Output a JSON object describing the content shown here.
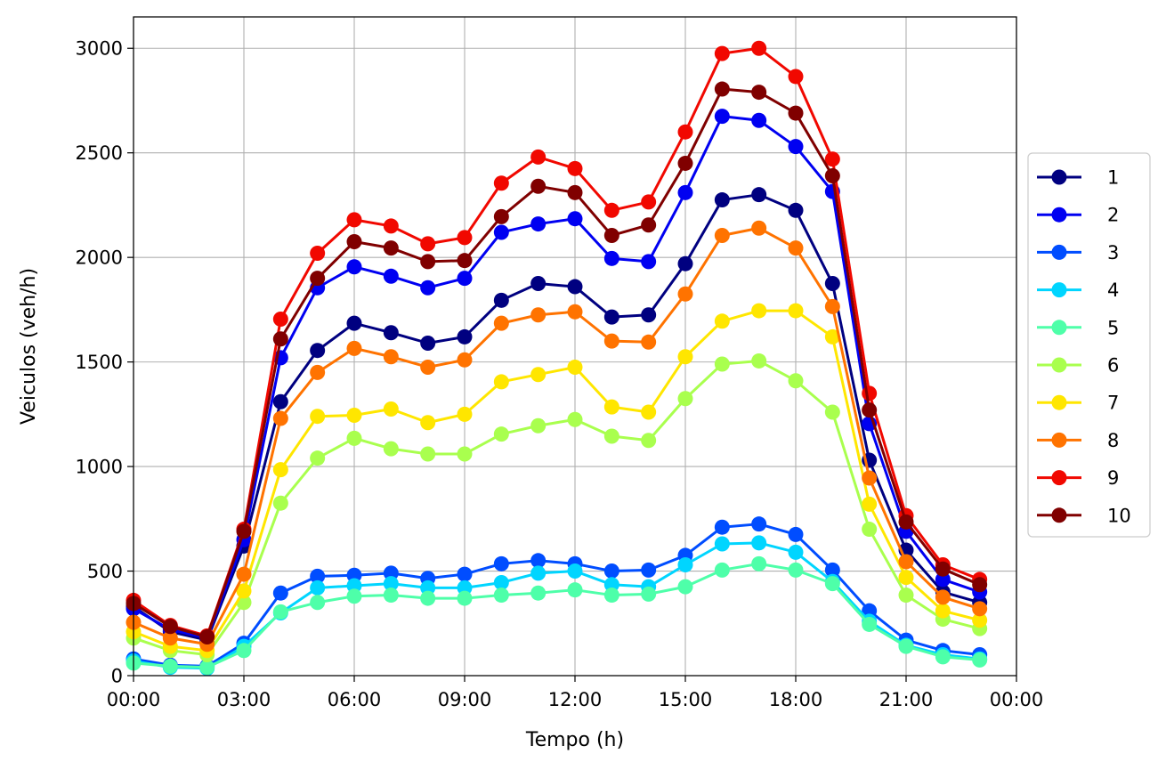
{
  "chart_data": {
    "type": "line",
    "title": "",
    "xlabel": "Tempo (h)",
    "ylabel": "Veiculos (veh/h)",
    "xlim": [
      0,
      24
    ],
    "ylim": [
      0,
      3150
    ],
    "grid": true,
    "legend_position": "right",
    "x_ticks": [
      {
        "value": 0,
        "label": "00:00"
      },
      {
        "value": 3,
        "label": "03:00"
      },
      {
        "value": 6,
        "label": "06:00"
      },
      {
        "value": 9,
        "label": "09:00"
      },
      {
        "value": 12,
        "label": "12:00"
      },
      {
        "value": 15,
        "label": "15:00"
      },
      {
        "value": 18,
        "label": "18:00"
      },
      {
        "value": 21,
        "label": "21:00"
      },
      {
        "value": 24,
        "label": "00:00"
      }
    ],
    "y_ticks": [
      {
        "value": 0,
        "label": "0"
      },
      {
        "value": 500,
        "label": "500"
      },
      {
        "value": 1000,
        "label": "1000"
      },
      {
        "value": 1500,
        "label": "1500"
      },
      {
        "value": 2000,
        "label": "2000"
      },
      {
        "value": 2500,
        "label": "2500"
      },
      {
        "value": 3000,
        "label": "3000"
      }
    ],
    "x": [
      "00:00",
      "01:00",
      "02:00",
      "03:00",
      "04:00",
      "05:00",
      "06:00",
      "07:00",
      "08:00",
      "09:00",
      "10:00",
      "11:00",
      "12:00",
      "13:00",
      "14:00",
      "15:00",
      "16:00",
      "17:00",
      "18:00",
      "19:00",
      "20:00",
      "21:00",
      "22:00",
      "23:00"
    ],
    "series": [
      {
        "name": "1",
        "color": "#000080",
        "values": [
          330,
          210,
          170,
          620,
          1310,
          1555,
          1685,
          1640,
          1590,
          1620,
          1795,
          1875,
          1860,
          1715,
          1725,
          1970,
          2275,
          2300,
          2225,
          1875,
          1030,
          600,
          400,
          350
        ]
      },
      {
        "name": "2",
        "color": "#0000f1",
        "values": [
          320,
          220,
          180,
          650,
          1520,
          1855,
          1955,
          1910,
          1855,
          1900,
          2120,
          2160,
          2185,
          1995,
          1980,
          2310,
          2675,
          2655,
          2530,
          2315,
          1205,
          690,
          460,
          400
        ]
      },
      {
        "name": "3",
        "color": "#004dff",
        "values": [
          80,
          50,
          45,
          155,
          395,
          475,
          480,
          490,
          465,
          485,
          535,
          550,
          535,
          500,
          505,
          575,
          710,
          725,
          675,
          505,
          310,
          170,
          120,
          100
        ]
      },
      {
        "name": "4",
        "color": "#00d5ff",
        "values": [
          70,
          40,
          35,
          140,
          300,
          420,
          430,
          440,
          420,
          420,
          445,
          490,
          500,
          435,
          425,
          530,
          630,
          635,
          590,
          450,
          260,
          145,
          100,
          80
        ]
      },
      {
        "name": "5",
        "color": "#4effa9",
        "values": [
          60,
          45,
          40,
          120,
          305,
          350,
          380,
          385,
          370,
          370,
          385,
          395,
          410,
          385,
          390,
          425,
          505,
          535,
          505,
          440,
          245,
          140,
          90,
          75
        ]
      },
      {
        "name": "6",
        "color": "#a9ff4e",
        "values": [
          180,
          120,
          100,
          350,
          825,
          1040,
          1135,
          1085,
          1060,
          1060,
          1155,
          1195,
          1225,
          1145,
          1125,
          1325,
          1490,
          1505,
          1410,
          1260,
          700,
          385,
          270,
          225
        ]
      },
      {
        "name": "7",
        "color": "#ffe600",
        "values": [
          210,
          140,
          120,
          405,
          985,
          1240,
          1245,
          1275,
          1210,
          1250,
          1405,
          1440,
          1475,
          1285,
          1260,
          1525,
          1695,
          1745,
          1745,
          1620,
          820,
          470,
          310,
          265
        ]
      },
      {
        "name": "8",
        "color": "#ff7300",
        "values": [
          255,
          180,
          150,
          485,
          1230,
          1450,
          1565,
          1525,
          1475,
          1510,
          1685,
          1725,
          1740,
          1600,
          1595,
          1825,
          2105,
          2140,
          2045,
          1765,
          945,
          545,
          375,
          320
        ]
      },
      {
        "name": "9",
        "color": "#f10800",
        "values": [
          360,
          240,
          190,
          700,
          1705,
          2020,
          2180,
          2150,
          2065,
          2095,
          2355,
          2480,
          2425,
          2225,
          2265,
          2600,
          2975,
          3000,
          2865,
          2470,
          1350,
          765,
          530,
          460
        ]
      },
      {
        "name": "10",
        "color": "#800000",
        "values": [
          345,
          235,
          185,
          690,
          1610,
          1900,
          2075,
          2045,
          1980,
          1985,
          2195,
          2340,
          2310,
          2105,
          2155,
          2450,
          2805,
          2790,
          2690,
          2390,
          1270,
          735,
          510,
          435
        ]
      }
    ]
  }
}
